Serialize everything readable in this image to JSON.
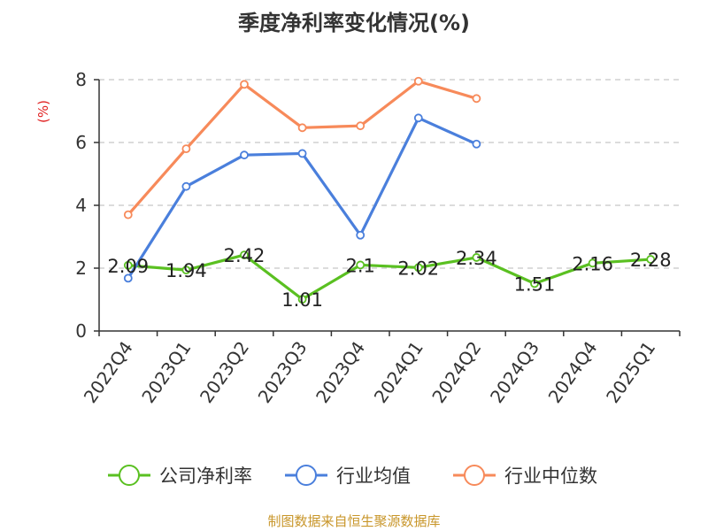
{
  "chart_data": {
    "type": "line",
    "title": "季度净利率变化情况(%)",
    "ylabel": "(%)",
    "xlabel": "",
    "ylim": [
      0,
      8
    ],
    "yticks": [
      "0",
      "2",
      "4",
      "6",
      "8"
    ],
    "grid": true,
    "legend_position": "bottom",
    "categories": [
      "2022Q4",
      "2023Q1",
      "2023Q2",
      "2023Q3",
      "2023Q4",
      "2024Q1",
      "2024Q2",
      "2024Q3",
      "2024Q4",
      "2025Q1"
    ],
    "series": [
      {
        "name": "公司净利率",
        "color": "#5ac021",
        "values": [
          2.09,
          1.94,
          2.42,
          1.01,
          2.1,
          2.02,
          2.34,
          1.51,
          2.16,
          2.28
        ],
        "labels": [
          "2.09",
          "1.94",
          "2.42",
          "1.01",
          "2.1",
          "2.02",
          "2.34",
          "1.51",
          "2.16",
          "2.28"
        ]
      },
      {
        "name": "行业均值",
        "color": "#4a7fdc",
        "values": [
          1.68,
          4.6,
          5.6,
          5.65,
          3.05,
          6.78,
          5.95,
          null,
          null,
          null
        ]
      },
      {
        "name": "行业中位数",
        "color": "#f78a5a",
        "values": [
          3.7,
          5.8,
          7.85,
          6.47,
          6.53,
          7.95,
          7.4,
          null,
          null,
          null
        ]
      }
    ]
  },
  "footer": {
    "source": "制图数据来自恒生聚源数据库"
  }
}
